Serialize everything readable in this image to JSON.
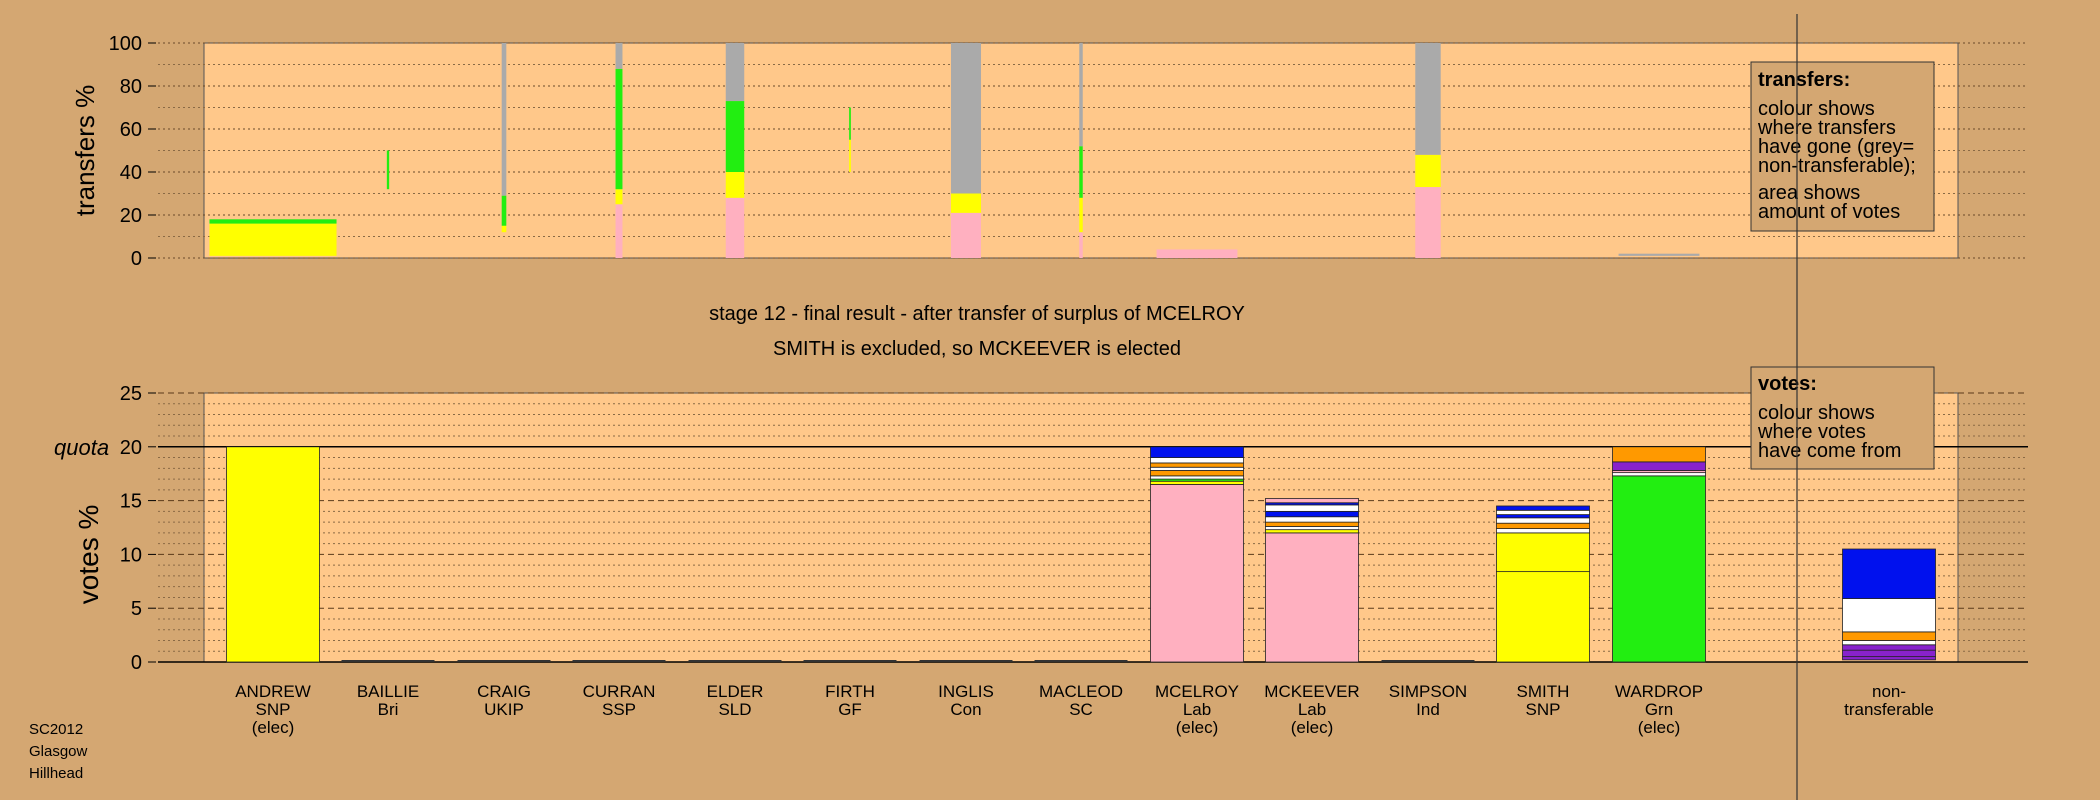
{
  "colors": {
    "background": "#d4a772",
    "panel": "#ffc88a",
    "SNP": "#ffff00",
    "Lab": "#ffb0c0",
    "Grn": "#22ee11",
    "Con": "#0011ee",
    "LD": "#ff9900",
    "other": "#8822cc",
    "nontransferable": "#aaaaaa",
    "white": "#ffffff"
  },
  "chart_data": [
    {
      "type": "bar",
      "id": "transfers",
      "ylabel": "transfers %",
      "ylim": [
        0,
        100
      ],
      "yticks": [
        0,
        20,
        40,
        60,
        80,
        100
      ],
      "legend": {
        "title": "transfers:",
        "lines1": [
          "colour shows",
          "where transfers",
          "have gone (grey=",
          "non-transferable);"
        ],
        "lines2": [
          "area shows",
          "amount of votes"
        ]
      },
      "bars": [
        {
          "candidate": "ANDREW",
          "width": 1.1,
          "segments": [
            {
              "color": "SNP",
              "from": 1,
              "to": 16
            },
            {
              "color": "Grn",
              "from": 16,
              "to": 18
            }
          ]
        },
        {
          "candidate": "BAILLIE",
          "width": 0.02,
          "segments": [
            {
              "color": "Grn",
              "from": 32,
              "to": 50
            }
          ]
        },
        {
          "candidate": "CRAIG",
          "width": 0.04,
          "segments": [
            {
              "color": "SNP",
              "from": 12,
              "to": 15
            },
            {
              "color": "Grn",
              "from": 15,
              "to": 29
            },
            {
              "color": "nontransferable",
              "from": 29,
              "to": 100
            }
          ]
        },
        {
          "candidate": "CURRAN",
          "width": 0.06,
          "segments": [
            {
              "color": "Lab",
              "from": 0,
              "to": 25
            },
            {
              "color": "SNP",
              "from": 25,
              "to": 32
            },
            {
              "color": "Grn",
              "from": 32,
              "to": 88
            },
            {
              "color": "nontransferable",
              "from": 88,
              "to": 100
            }
          ]
        },
        {
          "candidate": "ELDER",
          "width": 0.16,
          "segments": [
            {
              "color": "Lab",
              "from": 0,
              "to": 28
            },
            {
              "color": "SNP",
              "from": 28,
              "to": 40
            },
            {
              "color": "Grn",
              "from": 40,
              "to": 73
            },
            {
              "color": "nontransferable",
              "from": 73,
              "to": 100
            }
          ]
        },
        {
          "candidate": "FIRTH",
          "width": 0.015,
          "segments": [
            {
              "color": "SNP",
              "from": 40,
              "to": 55
            },
            {
              "color": "Grn",
              "from": 55,
              "to": 70
            }
          ]
        },
        {
          "candidate": "INGLIS",
          "width": 0.26,
          "segments": [
            {
              "color": "Lab",
              "from": 0,
              "to": 21
            },
            {
              "color": "SNP",
              "from": 21,
              "to": 30
            },
            {
              "color": "nontransferable",
              "from": 30,
              "to": 100
            }
          ]
        },
        {
          "candidate": "MACLEOD",
          "width": 0.03,
          "segments": [
            {
              "color": "Lab",
              "from": 0,
              "to": 12
            },
            {
              "color": "SNP",
              "from": 12,
              "to": 28
            },
            {
              "color": "Grn",
              "from": 28,
              "to": 52
            },
            {
              "color": "nontransferable",
              "from": 52,
              "to": 100
            }
          ]
        },
        {
          "candidate": "MCELROY",
          "width": 0.7,
          "segments": [
            {
              "color": "Lab",
              "from": 0,
              "to": 4
            }
          ]
        },
        {
          "candidate": "MCKEEVER",
          "width": 0,
          "segments": []
        },
        {
          "candidate": "SIMPSON",
          "width": 0.22,
          "segments": [
            {
              "color": "Lab",
              "from": 0,
              "to": 33
            },
            {
              "color": "SNP",
              "from": 33,
              "to": 48
            },
            {
              "color": "nontransferable",
              "from": 48,
              "to": 100
            }
          ]
        },
        {
          "candidate": "SMITH",
          "width": 0,
          "segments": []
        },
        {
          "candidate": "WARDROP",
          "width": 0.7,
          "segments": [
            {
              "color": "nontransferable",
              "from": 1,
              "to": 2
            }
          ]
        }
      ]
    },
    {
      "type": "bar",
      "id": "votes",
      "title_lines": [
        "stage 12 - final result - after transfer of surplus of MCELROY",
        "SMITH is excluded, so MCKEEVER is elected"
      ],
      "ylabel": "votes %",
      "ylim": [
        0,
        25
      ],
      "yticks": [
        0,
        5,
        10,
        15,
        20,
        25
      ],
      "quota": {
        "label": "quota",
        "value": 20
      },
      "legend": {
        "title": "votes:",
        "lines": [
          "colour shows",
          "where votes",
          "have come from"
        ]
      },
      "categories": [
        [
          "ANDREW",
          "SNP",
          "(elec)"
        ],
        [
          "BAILLIE",
          "Bri"
        ],
        [
          "CRAIG",
          "UKIP"
        ],
        [
          "CURRAN",
          "SSP"
        ],
        [
          "ELDER",
          "SLD"
        ],
        [
          "FIRTH",
          "GF"
        ],
        [
          "INGLIS",
          "Con"
        ],
        [
          "MACLEOD",
          "SC"
        ],
        [
          "MCELROY",
          "Lab",
          "(elec)"
        ],
        [
          "MCKEEVER",
          "Lab",
          "(elec)"
        ],
        [
          "SIMPSON",
          "Ind"
        ],
        [
          "SMITH",
          "SNP"
        ],
        [
          "WARDROP",
          "Grn",
          "(elec)"
        ],
        [
          "non-",
          "transferable"
        ]
      ],
      "bars": [
        {
          "candidate": "ANDREW",
          "segments": [
            {
              "color": "SNP",
              "from": 0,
              "to": 20
            }
          ]
        },
        {
          "candidate": "BAILLIE",
          "segments": []
        },
        {
          "candidate": "CRAIG",
          "segments": []
        },
        {
          "candidate": "CURRAN",
          "segments": []
        },
        {
          "candidate": "ELDER",
          "segments": []
        },
        {
          "candidate": "FIRTH",
          "segments": []
        },
        {
          "candidate": "INGLIS",
          "segments": []
        },
        {
          "candidate": "MACLEOD",
          "segments": []
        },
        {
          "candidate": "MCELROY",
          "segments": [
            {
              "color": "Lab",
              "from": 0,
              "to": 16.5
            },
            {
              "color": "SNP",
              "from": 16.5,
              "to": 16.8
            },
            {
              "color": "Grn",
              "from": 16.8,
              "to": 17.0
            },
            {
              "color": "white",
              "from": 17.0,
              "to": 17.3
            },
            {
              "color": "LD",
              "from": 17.3,
              "to": 17.8
            },
            {
              "color": "white",
              "from": 17.8,
              "to": 18.1
            },
            {
              "color": "LD",
              "from": 18.1,
              "to": 18.5
            },
            {
              "color": "white",
              "from": 18.5,
              "to": 19.0
            },
            {
              "color": "white",
              "from": 19.0,
              "to": 19.0
            },
            {
              "color": "Con",
              "from": 19.0,
              "to": 20
            }
          ]
        },
        {
          "candidate": "MCKEEVER",
          "segments": [
            {
              "color": "Lab",
              "from": 0,
              "to": 12.0
            },
            {
              "color": "SNP",
              "from": 12.0,
              "to": 12.3
            },
            {
              "color": "white",
              "from": 12.3,
              "to": 12.6
            },
            {
              "color": "LD",
              "from": 12.6,
              "to": 13.0
            },
            {
              "color": "white",
              "from": 13.0,
              "to": 13.5
            },
            {
              "color": "Con",
              "from": 13.5,
              "to": 14.0
            },
            {
              "color": "white",
              "from": 14.0,
              "to": 14.6
            },
            {
              "color": "Con",
              "from": 14.6,
              "to": 14.8
            },
            {
              "color": "Lab",
              "from": 14.8,
              "to": 15.2
            }
          ]
        },
        {
          "candidate": "SIMPSON",
          "segments": []
        },
        {
          "candidate": "SMITH",
          "segments": [
            {
              "color": "SNP",
              "from": 0,
              "to": 8.4
            },
            {
              "color": "SNP",
              "from": 8.4,
              "to": 12.0
            },
            {
              "color": "white",
              "from": 12.0,
              "to": 12.4
            },
            {
              "color": "LD",
              "from": 12.4,
              "to": 12.9
            },
            {
              "color": "white",
              "from": 12.9,
              "to": 13.4
            },
            {
              "color": "Con",
              "from": 13.4,
              "to": 13.7
            },
            {
              "color": "white",
              "from": 13.7,
              "to": 14.1
            },
            {
              "color": "Con",
              "from": 14.1,
              "to": 14.5
            }
          ]
        },
        {
          "candidate": "WARDROP",
          "segments": [
            {
              "color": "Grn",
              "from": 0,
              "to": 17.3
            },
            {
              "color": "white",
              "from": 17.3,
              "to": 17.6
            },
            {
              "color": "Lab",
              "from": 17.6,
              "to": 17.8
            },
            {
              "color": "other",
              "from": 17.8,
              "to": 18.6
            },
            {
              "color": "LD",
              "from": 18.6,
              "to": 20
            }
          ]
        },
        {
          "candidate": "non-transferable",
          "segments": [
            {
              "color": "other",
              "from": 0.2,
              "to": 0.5
            },
            {
              "color": "other",
              "from": 0.5,
              "to": 1.1
            },
            {
              "color": "other",
              "from": 1.1,
              "to": 1.6
            },
            {
              "color": "white",
              "from": 1.6,
              "to": 2.0
            },
            {
              "color": "LD",
              "from": 2.0,
              "to": 2.8
            },
            {
              "color": "white",
              "from": 2.8,
              "to": 5.9
            },
            {
              "color": "Con",
              "from": 5.9,
              "to": 10.5
            }
          ]
        }
      ]
    }
  ],
  "footer_lines": [
    "SC2012",
    "Glasgow",
    "Hillhead"
  ]
}
